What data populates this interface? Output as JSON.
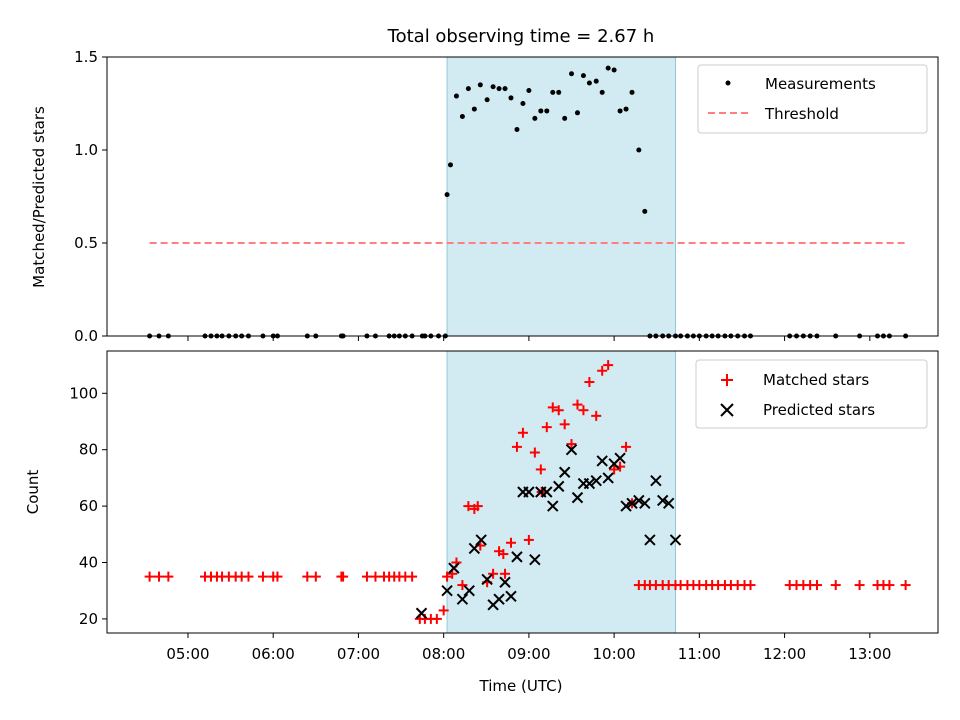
{
  "chart_data": {
    "title": "Total observing time = 2.67 h",
    "xlabel": "Time (UTC)",
    "x_ticks": [
      "05:00",
      "06:00",
      "07:00",
      "08:00",
      "09:00",
      "10:00",
      "11:00",
      "12:00",
      "13:00"
    ],
    "x_tick_values": [
      5,
      6,
      7,
      8,
      9,
      10,
      11,
      12,
      13
    ],
    "x_range": [
      4.05,
      13.8
    ],
    "observing_window": [
      8.04,
      10.72
    ],
    "window_color": "#add8e6",
    "panels": [
      {
        "type": "scatter",
        "ylabel": "Matched/Predicted stars",
        "ylim": [
          0,
          1.5
        ],
        "y_ticks": [
          "0.0",
          "0.5",
          "1.0",
          "1.5"
        ],
        "y_tick_values": [
          0,
          0.5,
          1.0,
          1.5
        ],
        "legend_position": "top-right",
        "series": [
          {
            "name": "Measurements",
            "marker": "dot",
            "color": "#000000",
            "x": [
              4.55,
              4.66,
              4.77,
              5.2,
              5.27,
              5.34,
              5.4,
              5.48,
              5.56,
              5.63,
              5.71,
              5.88,
              6.0,
              6.05,
              6.4,
              6.5,
              6.8,
              6.82,
              7.1,
              7.2,
              7.36,
              7.42,
              7.48,
              7.55,
              7.63,
              7.75,
              7.85,
              7.94,
              8.04,
              8.08,
              8.15,
              8.22,
              8.29,
              8.36,
              8.43,
              8.51,
              8.58,
              8.65,
              8.72,
              8.79,
              8.86,
              8.93,
              9.0,
              9.07,
              9.14,
              9.21,
              9.28,
              9.35,
              9.42,
              9.5,
              9.57,
              9.64,
              9.71,
              9.79,
              9.86,
              9.93,
              10.0,
              10.07,
              10.14,
              10.21,
              10.29,
              10.36,
              10.42,
              10.49,
              10.57,
              10.64,
              10.72,
              8.02,
              7.78,
              10.78,
              10.86,
              10.93,
              11.0,
              11.08,
              11.15,
              11.22,
              11.3,
              11.37,
              11.45,
              11.53,
              11.6,
              12.06,
              12.14,
              12.22,
              12.3,
              12.38,
              12.6,
              12.88,
              13.09,
              13.16,
              13.23,
              13.42
            ],
            "y": [
              0,
              0,
              0,
              0,
              0,
              0,
              0,
              0,
              0,
              0,
              0,
              0,
              0,
              0,
              0,
              0,
              0,
              0,
              0,
              0,
              0,
              0,
              0,
              0,
              0,
              0,
              0,
              0,
              0.76,
              0.92,
              1.29,
              1.18,
              1.33,
              1.22,
              1.35,
              1.27,
              1.34,
              1.33,
              1.33,
              1.28,
              1.11,
              1.25,
              1.32,
              1.17,
              1.21,
              1.21,
              1.31,
              1.31,
              1.17,
              1.41,
              1.2,
              1.4,
              1.36,
              1.37,
              1.31,
              1.44,
              1.43,
              1.21,
              1.22,
              1.31,
              1.0,
              0.67,
              0,
              0,
              0,
              0,
              0,
              0,
              0,
              0,
              0,
              0,
              0,
              0,
              0,
              0,
              0,
              0,
              0,
              0,
              0,
              0,
              0,
              0,
              0,
              0,
              0,
              0,
              0,
              0,
              0,
              0
            ],
            "y_note_extra": []
          },
          {
            "name": "Threshold",
            "marker": "dashed-line",
            "color": "#ff7f7f",
            "x": [
              4.55,
              13.42
            ],
            "y": [
              0.5,
              0.5
            ]
          }
        ]
      },
      {
        "type": "scatter",
        "ylabel": "Count",
        "ylim": [
          15,
          115
        ],
        "y_ticks": [
          "20",
          "40",
          "60",
          "80",
          "100"
        ],
        "y_tick_values": [
          20,
          40,
          60,
          80,
          100
        ],
        "legend_position": "top-right",
        "series": [
          {
            "name": "Matched stars",
            "marker": "plus",
            "color": "#ff0000",
            "x": [
              4.55,
              4.66,
              4.77,
              5.2,
              5.27,
              5.34,
              5.4,
              5.48,
              5.56,
              5.63,
              5.71,
              5.88,
              6.0,
              6.05,
              6.4,
              6.5,
              6.8,
              6.82,
              7.1,
              7.2,
              7.3,
              7.36,
              7.42,
              7.48,
              7.55,
              7.63,
              7.72,
              7.78,
              7.85,
              7.92,
              8.0,
              8.04,
              8.15,
              8.22,
              8.29,
              8.36,
              8.43,
              8.51,
              8.58,
              8.65,
              8.72,
              8.79,
              8.86,
              8.93,
              9.0,
              9.07,
              9.14,
              9.21,
              9.28,
              9.35,
              9.42,
              9.5,
              9.57,
              9.64,
              9.71,
              9.79,
              9.86,
              9.93,
              10.0,
              10.07,
              10.14,
              10.21,
              10.29,
              10.36,
              10.42,
              10.49,
              10.57,
              10.64,
              10.72,
              10.78,
              10.86,
              10.93,
              11.0,
              11.08,
              11.15,
              11.22,
              11.3,
              11.37,
              11.45,
              11.53,
              11.6,
              12.06,
              12.14,
              12.22,
              12.3,
              12.38,
              12.6,
              12.88,
              13.09,
              13.16,
              13.23,
              13.42,
              8.1,
              8.4,
              8.7,
              9.15
            ],
            "y": [
              35,
              35,
              35,
              35,
              35,
              35,
              35,
              35,
              35,
              35,
              35,
              35,
              35,
              35,
              35,
              35,
              35,
              35,
              35,
              35,
              35,
              35,
              35,
              35,
              35,
              35,
              20,
              20,
              20,
              20,
              23,
              35,
              40,
              32,
              60,
              59,
              46,
              33,
              36,
              44,
              36,
              47,
              81,
              86,
              48,
              79,
              73,
              88,
              95,
              94,
              89,
              82,
              96,
              94,
              104,
              92,
              108,
              110,
              73,
              74,
              81,
              61,
              32,
              32,
              32,
              32,
              32,
              32,
              32,
              32,
              32,
              32,
              32,
              32,
              32,
              32,
              32,
              32,
              32,
              32,
              32,
              32,
              32,
              32,
              32,
              32,
              32,
              32,
              32,
              32,
              32,
              32,
              36,
              60,
              43,
              65
            ],
            "y_note_extra": []
          },
          {
            "name": "Predicted stars",
            "marker": "x",
            "color": "#000000",
            "x": [
              7.74,
              8.04,
              8.12,
              8.22,
              8.3,
              8.36,
              8.44,
              8.51,
              8.58,
              8.65,
              8.72,
              8.79,
              8.86,
              8.93,
              9.0,
              9.07,
              9.14,
              9.21,
              9.28,
              9.35,
              9.42,
              9.5,
              9.57,
              9.64,
              9.71,
              9.79,
              9.86,
              9.93,
              10.0,
              10.07,
              10.14,
              10.21,
              10.29,
              10.36,
              10.42,
              10.49,
              10.57,
              10.64,
              10.72
            ],
            "y": [
              22,
              30,
              38,
              27,
              30,
              45,
              48,
              34,
              25,
              27,
              33,
              28,
              42,
              65,
              65,
              41,
              65,
              65,
              60,
              67,
              72,
              80,
              63,
              68,
              68,
              69,
              76,
              70,
              75,
              77,
              60,
              61,
              62,
              61,
              48,
              69,
              62,
              61,
              48
            ],
            "y_note_extra": []
          }
        ]
      }
    ]
  }
}
